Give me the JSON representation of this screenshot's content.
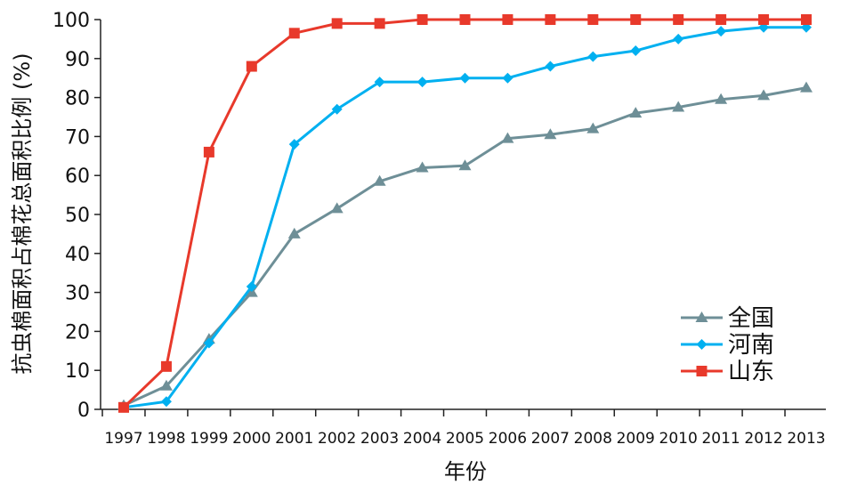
{
  "chart_data": {
    "type": "line",
    "title": "",
    "xlabel": "年份",
    "ylabel": "抗虫棉面积占棉花总面积比例 (%)",
    "ylim": [
      0,
      100
    ],
    "yticks": [
      0,
      10,
      20,
      30,
      40,
      50,
      60,
      70,
      80,
      90,
      100
    ],
    "grid": false,
    "legend_position": "bottom-right",
    "categories": [
      "1997",
      "1998",
      "1999",
      "2000",
      "2001",
      "2002",
      "2003",
      "2004",
      "2005",
      "2006",
      "2007",
      "2008",
      "2009",
      "2010",
      "2011",
      "2012",
      "2013"
    ],
    "series": [
      {
        "name": "全国",
        "color": "#6e8f97",
        "marker": "triangle",
        "values": [
          1,
          6,
          18,
          30,
          45,
          51.5,
          58.5,
          62,
          62.5,
          69.5,
          70.5,
          72,
          76,
          77.5,
          79.5,
          80.5,
          82.5
        ]
      },
      {
        "name": "河南",
        "color": "#00b0f0",
        "marker": "diamond",
        "values": [
          0.5,
          2,
          17,
          31.5,
          68,
          77,
          84,
          84,
          85,
          85,
          88,
          90.5,
          92,
          95,
          97,
          98,
          98
        ]
      },
      {
        "name": "山东",
        "color": "#e8392b",
        "marker": "square",
        "values": [
          0.5,
          11,
          66,
          88,
          96.5,
          99,
          99,
          100,
          100,
          100,
          100,
          100,
          100,
          100,
          100,
          100,
          100
        ]
      }
    ]
  }
}
